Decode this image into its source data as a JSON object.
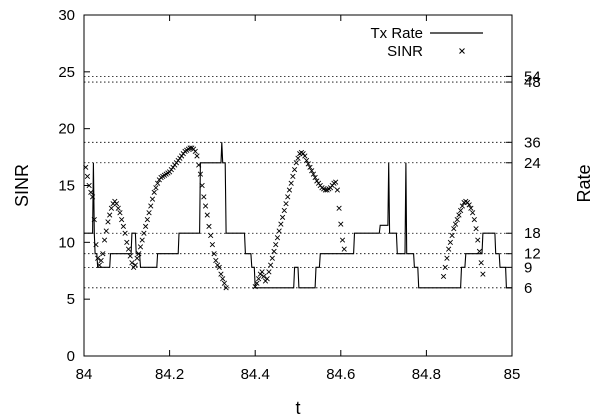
{
  "chart_data": {
    "type": "line",
    "xlabel": "t",
    "ylabel_left": "SINR",
    "ylabel_right": "Rate",
    "xlim": [
      84,
      85
    ],
    "ylim": [
      0,
      30
    ],
    "x_ticks": [
      84,
      84.2,
      84.4,
      84.6,
      84.8,
      85
    ],
    "x_tick_labels": [
      "84",
      "84.2",
      "84.4",
      "84.6",
      "84.8",
      "85"
    ],
    "y_ticks": [
      0,
      5,
      10,
      15,
      20,
      25,
      30
    ],
    "y_tick_labels": [
      "0",
      "5",
      "10",
      "15",
      "20",
      "25",
      "30"
    ],
    "rate_levels": [
      {
        "label": "6",
        "sinr": 6.0
      },
      {
        "label": "9",
        "sinr": 7.8
      },
      {
        "label": "12",
        "sinr": 9.0
      },
      {
        "label": "18",
        "sinr": 10.8
      },
      {
        "label": "24",
        "sinr": 17.0
      },
      {
        "label": "36",
        "sinr": 18.8
      },
      {
        "label": "48",
        "sinr": 24.1
      },
      {
        "label": "54",
        "sinr": 24.6
      }
    ],
    "legend_position": "top-right",
    "series": [
      {
        "name": "Tx Rate",
        "style": "line",
        "points": [
          [
            84.0,
            10.8
          ],
          [
            84.02,
            10.8
          ],
          [
            84.022,
            17.0
          ],
          [
            84.024,
            10.8
          ],
          [
            84.026,
            9.0
          ],
          [
            84.03,
            9.0
          ],
          [
            84.032,
            7.8
          ],
          [
            84.06,
            7.8
          ],
          [
            84.062,
            9.0
          ],
          [
            84.11,
            9.0
          ],
          [
            84.112,
            10.8
          ],
          [
            84.12,
            10.8
          ],
          [
            84.122,
            9.0
          ],
          [
            84.13,
            9.0
          ],
          [
            84.132,
            7.8
          ],
          [
            84.17,
            7.8
          ],
          [
            84.172,
            9.0
          ],
          [
            84.22,
            9.0
          ],
          [
            84.222,
            10.8
          ],
          [
            84.27,
            10.8
          ],
          [
            84.272,
            17.0
          ],
          [
            84.32,
            17.0
          ],
          [
            84.322,
            18.8
          ],
          [
            84.324,
            17.0
          ],
          [
            84.33,
            17.0
          ],
          [
            84.332,
            10.8
          ],
          [
            84.375,
            10.8
          ],
          [
            84.377,
            9.0
          ],
          [
            84.39,
            9.0
          ],
          [
            84.392,
            7.8
          ],
          [
            84.398,
            7.8
          ],
          [
            84.4,
            6.0
          ],
          [
            84.49,
            6.0
          ],
          [
            84.492,
            7.8
          ],
          [
            84.5,
            7.8
          ],
          [
            84.502,
            6.0
          ],
          [
            84.54,
            6.0
          ],
          [
            84.542,
            7.8
          ],
          [
            84.55,
            7.8
          ],
          [
            84.552,
            9.0
          ],
          [
            84.63,
            9.0
          ],
          [
            84.632,
            10.8
          ],
          [
            84.69,
            10.8
          ],
          [
            84.692,
            11.5
          ],
          [
            84.71,
            11.5
          ],
          [
            84.712,
            17.0
          ],
          [
            84.714,
            10.8
          ],
          [
            84.73,
            10.8
          ],
          [
            84.732,
            9.0
          ],
          [
            84.75,
            9.0
          ],
          [
            84.752,
            17.0
          ],
          [
            84.754,
            9.0
          ],
          [
            84.77,
            9.0
          ],
          [
            84.772,
            7.8
          ],
          [
            84.78,
            7.8
          ],
          [
            84.782,
            6.0
          ],
          [
            84.88,
            6.0
          ],
          [
            84.882,
            7.8
          ],
          [
            84.89,
            7.8
          ],
          [
            84.892,
            9.0
          ],
          [
            84.93,
            9.0
          ],
          [
            84.932,
            10.8
          ],
          [
            84.96,
            10.8
          ],
          [
            84.962,
            9.0
          ],
          [
            84.97,
            9.0
          ],
          [
            84.972,
            7.8
          ],
          [
            84.985,
            7.8
          ],
          [
            84.987,
            6.0
          ],
          [
            85.0,
            6.0
          ]
        ]
      },
      {
        "name": "SINR",
        "style": "points",
        "points": [
          [
            84.004,
            16.6
          ],
          [
            84.008,
            15.8
          ],
          [
            84.012,
            15.0
          ],
          [
            84.016,
            14.4
          ],
          [
            84.02,
            14.0
          ],
          [
            84.024,
            12.0
          ],
          [
            84.028,
            9.8
          ],
          [
            84.032,
            8.6
          ],
          [
            84.036,
            8.0
          ],
          [
            84.04,
            8.4
          ],
          [
            84.044,
            9.0
          ],
          [
            84.048,
            10.2
          ],
          [
            84.052,
            11.0
          ],
          [
            84.056,
            11.8
          ],
          [
            84.06,
            12.4
          ],
          [
            84.064,
            13.0
          ],
          [
            84.068,
            13.4
          ],
          [
            84.072,
            13.6
          ],
          [
            84.076,
            13.4
          ],
          [
            84.08,
            13.0
          ],
          [
            84.084,
            12.6
          ],
          [
            84.088,
            12.0
          ],
          [
            84.092,
            11.4
          ],
          [
            84.096,
            10.8
          ],
          [
            84.1,
            10.0
          ],
          [
            84.104,
            9.4
          ],
          [
            84.108,
            8.8
          ],
          [
            84.112,
            8.2
          ],
          [
            84.116,
            7.8
          ],
          [
            84.12,
            8.0
          ],
          [
            84.124,
            8.6
          ],
          [
            84.128,
            9.0
          ],
          [
            84.132,
            9.6
          ],
          [
            84.136,
            10.2
          ],
          [
            84.14,
            10.8
          ],
          [
            84.144,
            11.4
          ],
          [
            84.148,
            12.0
          ],
          [
            84.152,
            12.6
          ],
          [
            84.156,
            13.2
          ],
          [
            84.16,
            13.8
          ],
          [
            84.164,
            14.4
          ],
          [
            84.168,
            14.8
          ],
          [
            84.172,
            15.2
          ],
          [
            84.176,
            15.5
          ],
          [
            84.18,
            15.7
          ],
          [
            84.184,
            15.8
          ],
          [
            84.188,
            15.9
          ],
          [
            84.192,
            16.0
          ],
          [
            84.196,
            16.1
          ],
          [
            84.2,
            16.2
          ],
          [
            84.204,
            16.4
          ],
          [
            84.208,
            16.6
          ],
          [
            84.212,
            16.8
          ],
          [
            84.216,
            17.0
          ],
          [
            84.22,
            17.2
          ],
          [
            84.224,
            17.4
          ],
          [
            84.228,
            17.6
          ],
          [
            84.232,
            17.8
          ],
          [
            84.236,
            18.0
          ],
          [
            84.24,
            18.1
          ],
          [
            84.244,
            18.2
          ],
          [
            84.248,
            18.3
          ],
          [
            84.252,
            18.3
          ],
          [
            84.256,
            18.2
          ],
          [
            84.26,
            18.0
          ],
          [
            84.264,
            17.6
          ],
          [
            84.268,
            16.8
          ],
          [
            84.272,
            16.0
          ],
          [
            84.276,
            15.0
          ],
          [
            84.28,
            14.0
          ],
          [
            84.284,
            13.2
          ],
          [
            84.288,
            12.4
          ],
          [
            84.292,
            11.4
          ],
          [
            84.296,
            10.6
          ],
          [
            84.3,
            9.8
          ],
          [
            84.304,
            9.0
          ],
          [
            84.308,
            8.4
          ],
          [
            84.312,
            8.0
          ],
          [
            84.316,
            7.8
          ],
          [
            84.32,
            7.2
          ],
          [
            84.324,
            6.8
          ],
          [
            84.328,
            6.4
          ],
          [
            84.332,
            6.0
          ],
          [
            84.4,
            6.1
          ],
          [
            84.404,
            6.4
          ],
          [
            84.408,
            6.8
          ],
          [
            84.412,
            7.2
          ],
          [
            84.416,
            7.4
          ],
          [
            84.42,
            7.0
          ],
          [
            84.424,
            6.6
          ],
          [
            84.428,
            6.8
          ],
          [
            84.432,
            7.4
          ],
          [
            84.436,
            8.0
          ],
          [
            84.44,
            8.6
          ],
          [
            84.444,
            9.2
          ],
          [
            84.448,
            9.8
          ],
          [
            84.452,
            10.4
          ],
          [
            84.456,
            11.0
          ],
          [
            84.46,
            11.6
          ],
          [
            84.464,
            12.2
          ],
          [
            84.468,
            12.8
          ],
          [
            84.472,
            13.4
          ],
          [
            84.476,
            14.0
          ],
          [
            84.48,
            14.6
          ],
          [
            84.484,
            15.2
          ],
          [
            84.488,
            15.8
          ],
          [
            84.492,
            16.4
          ],
          [
            84.496,
            17.0
          ],
          [
            84.5,
            17.4
          ],
          [
            84.504,
            17.8
          ],
          [
            84.508,
            17.9
          ],
          [
            84.512,
            17.8
          ],
          [
            84.516,
            17.6
          ],
          [
            84.52,
            17.2
          ],
          [
            84.524,
            16.9
          ],
          [
            84.528,
            16.6
          ],
          [
            84.532,
            16.3
          ],
          [
            84.536,
            16.0
          ],
          [
            84.54,
            15.7
          ],
          [
            84.544,
            15.4
          ],
          [
            84.548,
            15.2
          ],
          [
            84.552,
            15.0
          ],
          [
            84.556,
            14.8
          ],
          [
            84.56,
            14.7
          ],
          [
            84.564,
            14.6
          ],
          [
            84.568,
            14.6
          ],
          [
            84.572,
            14.7
          ],
          [
            84.576,
            14.8
          ],
          [
            84.58,
            15.0
          ],
          [
            84.584,
            15.2
          ],
          [
            84.588,
            15.3
          ],
          [
            84.592,
            14.6
          ],
          [
            84.596,
            13.0
          ],
          [
            84.6,
            11.6
          ],
          [
            84.604,
            10.2
          ],
          [
            84.608,
            9.4
          ],
          [
            84.84,
            7.0
          ],
          [
            84.844,
            7.8
          ],
          [
            84.848,
            8.6
          ],
          [
            84.852,
            9.4
          ],
          [
            84.856,
            10.0
          ],
          [
            84.86,
            10.6
          ],
          [
            84.864,
            11.2
          ],
          [
            84.868,
            11.6
          ],
          [
            84.872,
            12.0
          ],
          [
            84.876,
            12.4
          ],
          [
            84.88,
            12.8
          ],
          [
            84.884,
            13.2
          ],
          [
            84.888,
            13.5
          ],
          [
            84.892,
            13.6
          ],
          [
            84.896,
            13.5
          ],
          [
            84.9,
            13.3
          ],
          [
            84.904,
            13.0
          ],
          [
            84.908,
            12.6
          ],
          [
            84.912,
            12.0
          ],
          [
            84.916,
            11.2
          ],
          [
            84.92,
            10.2
          ],
          [
            84.924,
            9.2
          ],
          [
            84.928,
            8.2
          ],
          [
            84.932,
            7.2
          ]
        ]
      }
    ]
  }
}
